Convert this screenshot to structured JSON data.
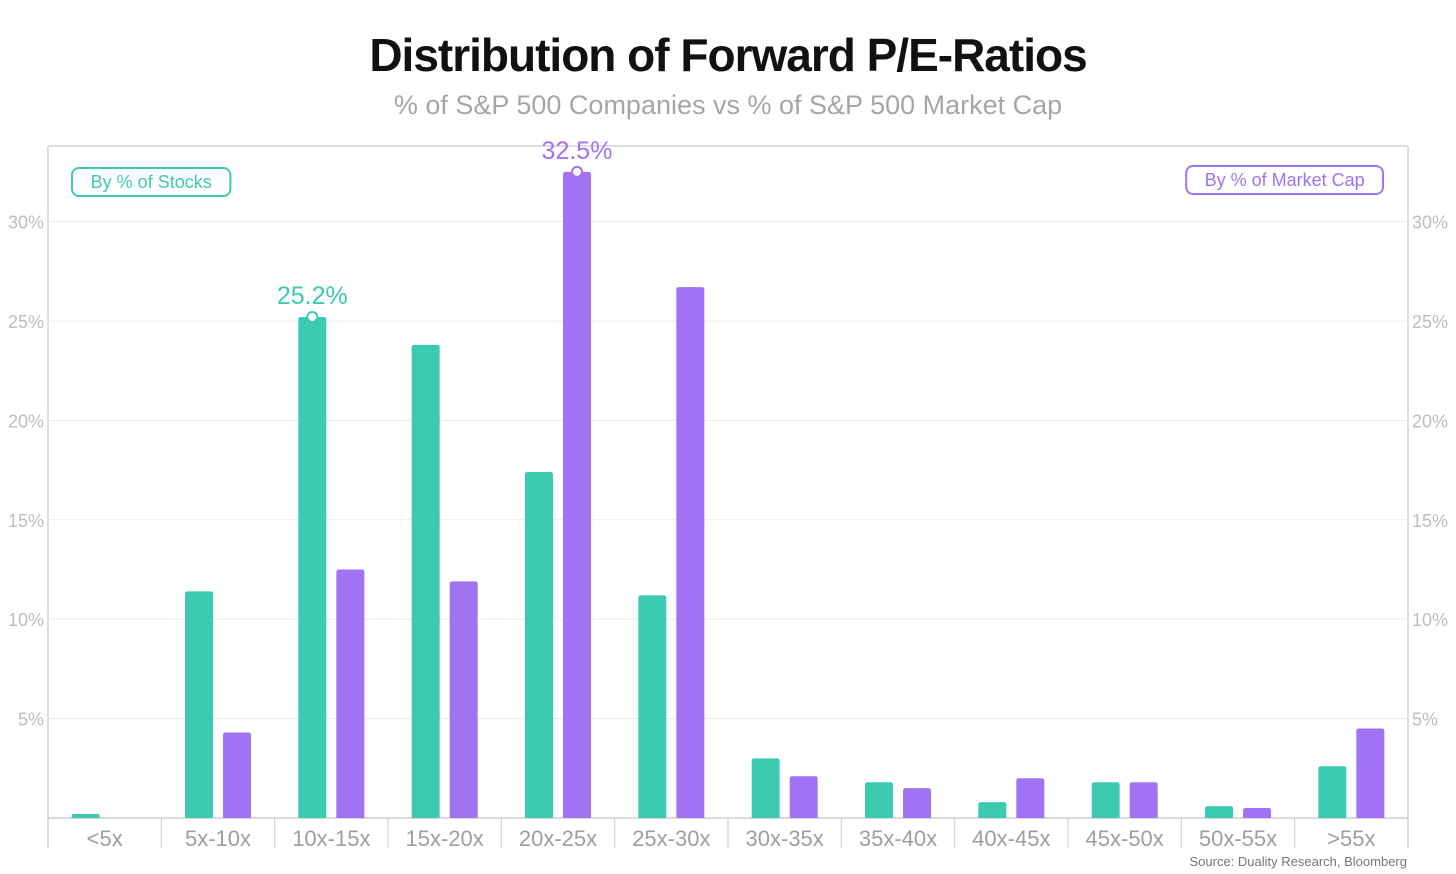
{
  "chart_data": {
    "type": "bar",
    "title": "Distribution of Forward P/E-Ratios",
    "subtitle": "% of S&P 500 Companies vs % of S&P 500 Market Cap",
    "categories": [
      "<5x",
      "5x-10x",
      "10x-15x",
      "15x-20x",
      "20x-25x",
      "25x-30x",
      "30x-35x",
      "35x-40x",
      "40x-45x",
      "45x-50x",
      "50x-55x",
      ">55x"
    ],
    "series": [
      {
        "name": "By % of Stocks",
        "color": "#3ccbb0",
        "values": [
          0.2,
          11.4,
          25.2,
          23.8,
          17.4,
          11.2,
          3.0,
          1.8,
          0.8,
          1.8,
          0.6,
          2.6
        ]
      },
      {
        "name": "By % of Market Cap",
        "color": "#a073f5",
        "values": [
          0.0,
          4.3,
          12.5,
          11.9,
          32.5,
          26.7,
          2.1,
          1.5,
          2.0,
          1.8,
          0.5,
          4.5
        ]
      }
    ],
    "ylim": [
      0,
      33.8
    ],
    "yticks": [
      5,
      10,
      15,
      20,
      25,
      30
    ],
    "ytick_labels": [
      "5%",
      "10%",
      "15%",
      "20%",
      "25%",
      "30%"
    ],
    "annotations": [
      {
        "series": 0,
        "category": "10x-15x",
        "label": "25.2%"
      },
      {
        "series": 1,
        "category": "20x-25x",
        "label": "32.5%"
      }
    ],
    "source": "Source: Duality Research, Bloomberg",
    "grid": true,
    "legend": {
      "left": "By % of Stocks",
      "right": "By % of Market Cap"
    }
  }
}
